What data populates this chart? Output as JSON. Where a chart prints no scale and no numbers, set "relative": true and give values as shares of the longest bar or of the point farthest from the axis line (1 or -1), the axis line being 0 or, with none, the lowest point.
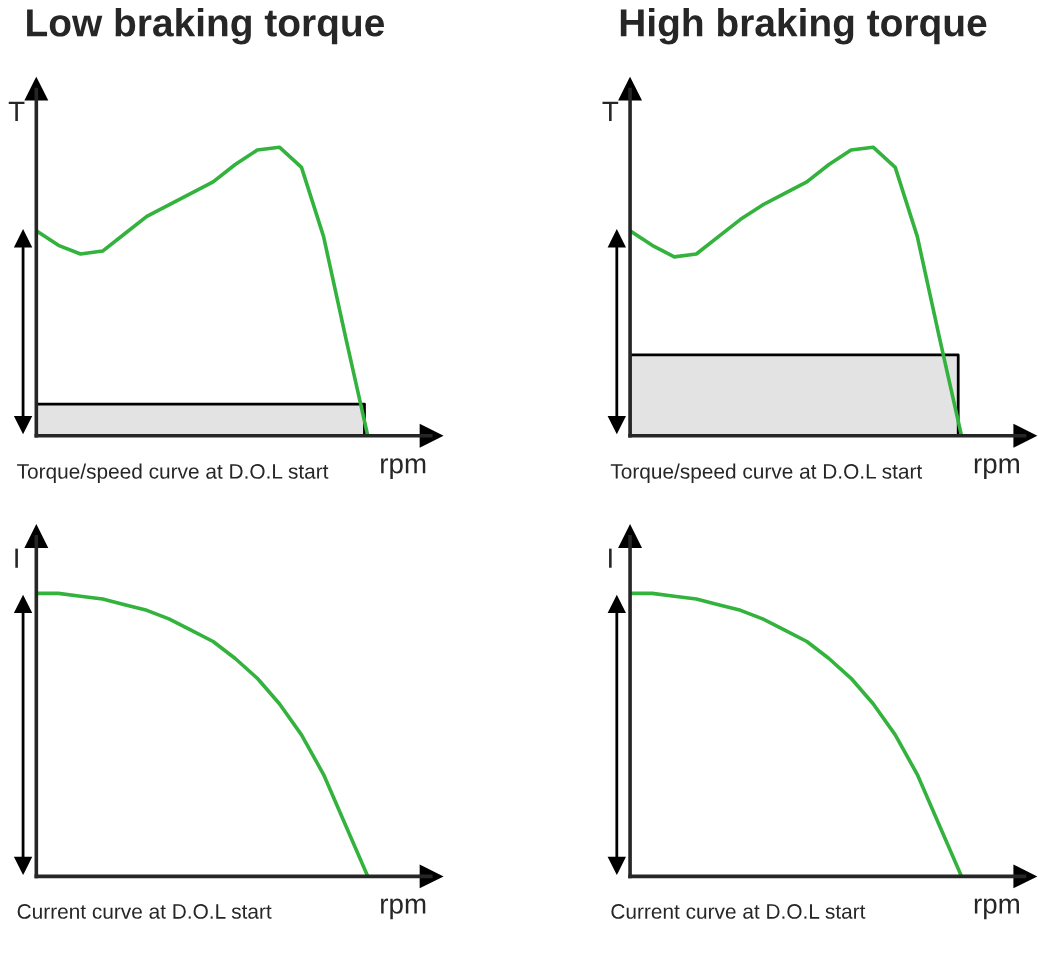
{
  "chart_data": [
    {
      "type": "line",
      "title": "Low braking torque",
      "xlabel": "rpm",
      "ylabel": "T",
      "relative": true,
      "categories": [
        null,
        null,
        null,
        null,
        null,
        null,
        null,
        null,
        null,
        null,
        null,
        null,
        null,
        null,
        null,
        null
      ],
      "series": [
        {
          "color": "#33b33d",
          "values": [
            0.71,
            0.66,
            0.63,
            0.64,
            0.7,
            0.76,
            0.8,
            0.84,
            0.88,
            0.94,
            0.99,
            1.0,
            0.93,
            0.69,
            0.34,
            0
          ]
        }
      ],
      "bands": [
        {
          "axis": "y",
          "from": 0,
          "to": 0.11,
          "color": "#e3e3e3"
        }
      ],
      "annotations": [
        "Torque/speed curve at D.O.L start"
      ]
    },
    {
      "type": "line",
      "title": "High braking torque",
      "xlabel": "rpm",
      "ylabel": "T",
      "relative": true,
      "categories": [
        null,
        null,
        null,
        null,
        null,
        null,
        null,
        null,
        null,
        null,
        null,
        null,
        null,
        null,
        null,
        null
      ],
      "series": [
        {
          "color": "#33b33d",
          "values": [
            0.71,
            0.66,
            0.62,
            0.63,
            0.69,
            0.75,
            0.8,
            0.84,
            0.88,
            0.94,
            0.99,
            1.0,
            0.93,
            0.69,
            0.34,
            0
          ]
        }
      ],
      "bands": [
        {
          "axis": "y",
          "from": 0,
          "to": 0.28,
          "color": "#e3e3e3"
        }
      ],
      "annotations": [
        "Torque/speed curve at D.O.L start"
      ]
    },
    {
      "type": "line",
      "xlabel": "rpm",
      "ylabel": "I",
      "relative": true,
      "categories": [
        null,
        null,
        null,
        null,
        null,
        null,
        null,
        null,
        null,
        null,
        null,
        null,
        null,
        null,
        null,
        null
      ],
      "series": [
        {
          "color": "#33b33d",
          "values": [
            1.0,
            1.0,
            0.99,
            0.98,
            0.96,
            0.94,
            0.91,
            0.87,
            0.83,
            0.77,
            0.7,
            0.61,
            0.5,
            0.36,
            0.18,
            0
          ]
        }
      ],
      "annotations": [
        "Current curve at D.O.L start"
      ]
    },
    {
      "type": "line",
      "xlabel": "rpm",
      "ylabel": "I",
      "relative": true,
      "categories": [
        null,
        null,
        null,
        null,
        null,
        null,
        null,
        null,
        null,
        null,
        null,
        null,
        null,
        null,
        null,
        null
      ],
      "series": [
        {
          "color": "#33b33d",
          "values": [
            1.0,
            1.0,
            0.99,
            0.98,
            0.96,
            0.94,
            0.91,
            0.87,
            0.83,
            0.77,
            0.7,
            0.61,
            0.5,
            0.36,
            0.18,
            0
          ]
        }
      ],
      "annotations": [
        "Current curve at D.O.L start"
      ]
    }
  ]
}
